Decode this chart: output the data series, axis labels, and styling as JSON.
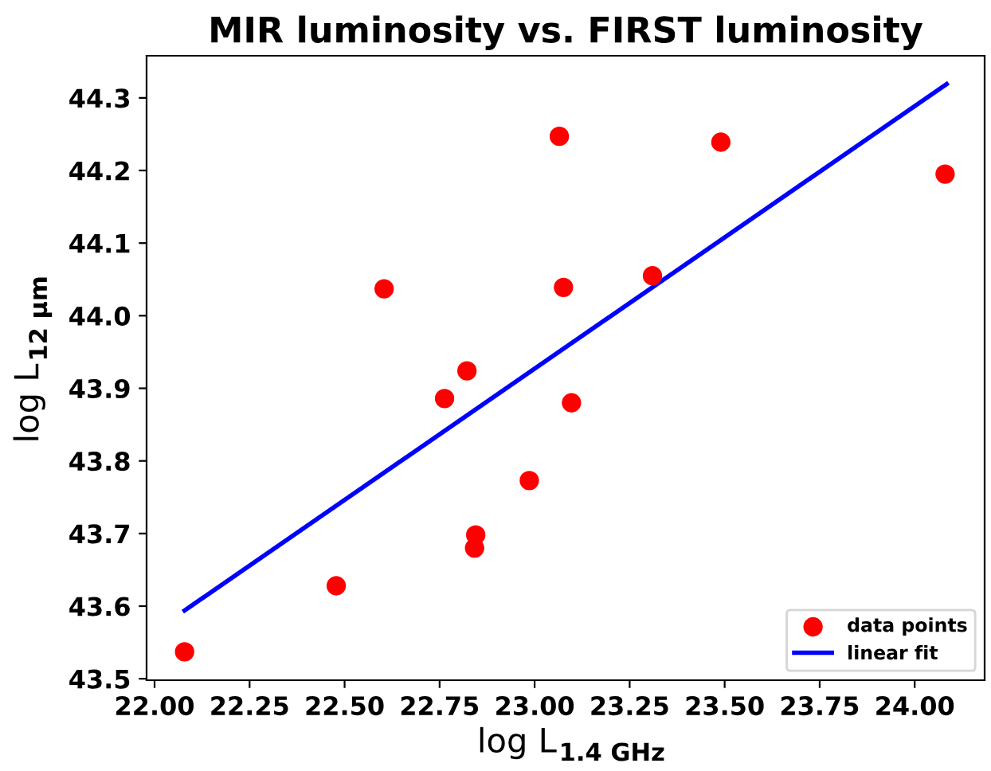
{
  "chart_data": {
    "type": "scatter",
    "title": "MIR luminosity vs. FIRST luminosity",
    "xlabel": "log L$_{1.4 GHz}$",
    "ylabel": "log L$_{12 μm}$",
    "xlim": [
      21.979,
      24.184
    ],
    "ylim": [
      43.498,
      44.358
    ],
    "xticks": [
      {
        "value": 22,
        "label": "22.00"
      },
      22.25,
      {
        "value": 22.5,
        "label": "22.50"
      },
      22.75,
      {
        "value": 23,
        "label": "23.00"
      },
      23.25,
      {
        "value": 23.5,
        "label": "23.50"
      },
      23.75,
      {
        "value": 24,
        "label": "24.00"
      }
    ],
    "yticks": [
      43.5,
      43.6,
      43.7,
      43.8,
      43.9,
      {
        "value": 44,
        "label": "44.0"
      },
      44.1,
      44.2,
      44.3
    ],
    "grid": false,
    "legend": "bottom right",
    "series": [
      {
        "name": "data points",
        "marker": "circle",
        "color": "#ff0000",
        "x": [
          22.079,
          22.478,
          22.604,
          22.763,
          22.822,
          22.845,
          22.842,
          22.986,
          23.065,
          23.076,
          23.097,
          23.31,
          23.49,
          24.08
        ],
        "values": [
          43.537,
          43.628,
          44.037,
          43.886,
          43.924,
          43.698,
          43.68,
          43.773,
          44.247,
          44.039,
          43.88,
          44.055,
          44.239,
          44.195
        ]
      },
      {
        "name": "linear fit",
        "type": "line",
        "marker": "none",
        "line_style": "solid",
        "color": "#0000ff",
        "x": [
          22.079,
          24.084
        ],
        "values": [
          43.594,
          44.319
        ]
      }
    ]
  }
}
